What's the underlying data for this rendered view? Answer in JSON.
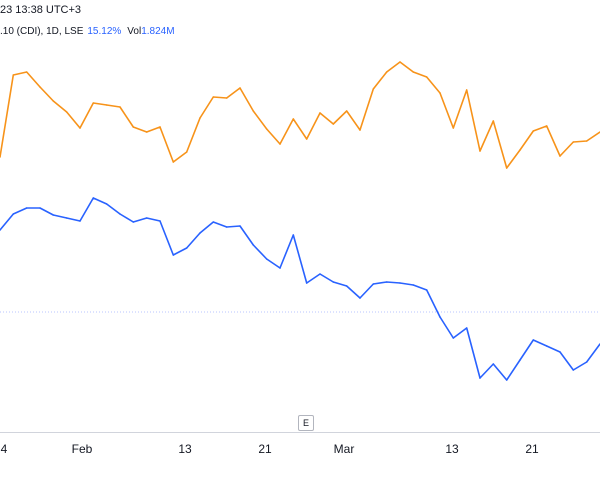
{
  "header": {
    "timestamp": "23 13:38 UTC+3",
    "symbol_info": ".10 (CDI), 1D, LSE",
    "change_pct": "15.12%",
    "vol_label": "Vol",
    "vol_value": "1.824M"
  },
  "colors": {
    "orange": "#f7931a",
    "blue": "#2962ff",
    "baseline": "#b8c4ff",
    "axis": "#d1d4dc"
  },
  "eventButton": "E",
  "chart_data": {
    "type": "line",
    "xlabel": "",
    "ylabel": "",
    "ticks": [
      {
        "label": "4",
        "idx": 0
      },
      {
        "label": "Feb",
        "idx": 6
      },
      {
        "label": "13",
        "idx": 14
      },
      {
        "label": "21",
        "idx": 20
      },
      {
        "label": "Mar",
        "idx": 26
      },
      {
        "label": "13",
        "idx": 34
      },
      {
        "label": "21",
        "idx": 40
      }
    ],
    "grid": false,
    "series": [
      {
        "color": "orange",
        "values": [
          157,
          75,
          72,
          87,
          101,
          112,
          128,
          103,
          105,
          107,
          127,
          132,
          127,
          162,
          152,
          118,
          97,
          98,
          88,
          111,
          129,
          144,
          119,
          139,
          113,
          124,
          111,
          130,
          89,
          72,
          62,
          72,
          77,
          93,
          128,
          90,
          151,
          121,
          168,
          150,
          131,
          126,
          156,
          142,
          141,
          132
        ],
        "ylim": [
          40,
          400
        ]
      },
      {
        "color": "blue",
        "values": [
          230,
          214,
          208,
          208,
          215,
          218,
          221,
          198,
          204,
          214,
          222,
          218,
          221,
          255,
          248,
          233,
          222,
          227,
          226,
          245,
          259,
          268,
          235,
          283,
          274,
          282,
          286,
          298,
          284,
          282,
          283,
          285,
          290,
          317,
          338,
          328,
          378,
          364,
          380,
          360,
          340,
          346,
          352,
          370,
          362,
          344
        ],
        "ylim": [
          40,
          400
        ]
      }
    ],
    "baseline_value": 312
  }
}
